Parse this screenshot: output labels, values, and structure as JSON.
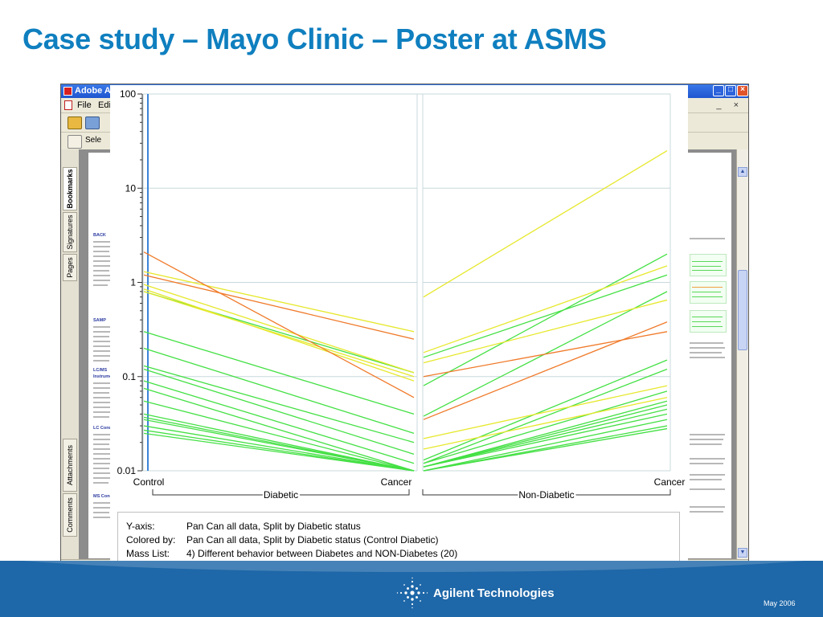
{
  "slide": {
    "title": "Case study – Mayo Clinic – Poster at ASMS",
    "footer_company": "Agilent Technologies",
    "footer_date": "May 2006",
    "logo_icon": "agilent-spark-icon"
  },
  "app_window": {
    "title": "Adobe A",
    "menu": [
      "File",
      "Edi"
    ],
    "mdi_controls": "_ ×",
    "select_tool_label": "Sele",
    "side_tabs": [
      "Bookmarks",
      "Signatures",
      "Pages",
      "Attachments",
      "Comments"
    ],
    "document_headings": [
      "BACK",
      "SAMP",
      "LC/MS",
      "Instrume",
      "LC Cond",
      "MS Cond"
    ]
  },
  "colors": {
    "title": "#0f7fbf",
    "footer": "#1e67a8",
    "orange": "#f07a2a",
    "yellow": "#e6e82c",
    "green": "#44e044",
    "selected_line": "#3a84d8",
    "grid": "#c8d8dc"
  },
  "info": {
    "rows": [
      {
        "label": "Y-axis:",
        "value": "Pan Can all data, Split by Diabetic status"
      },
      {
        "label": "Colored by:",
        "value": "Pan Can all data, Split by Diabetic status (Control Diabetic)"
      },
      {
        "label": "Mass List:",
        "value": "4) Different behavior between Diabetes and NON-Diabetes (20)"
      }
    ]
  },
  "chart_data": {
    "type": "line",
    "y_scale": "log",
    "ylim": [
      0.01,
      100
    ],
    "y_ticks": [
      "100",
      "10",
      "1",
      "0.1",
      "0.01"
    ],
    "y_tick_values": [
      100,
      10,
      1,
      0.1,
      0.01
    ],
    "panels": [
      {
        "name": "Diabetic",
        "x_ticks": [
          "Control",
          "Cancer"
        ],
        "series": [
          {
            "color": "orange",
            "values": [
              2.1,
              0.06
            ]
          },
          {
            "color": "orange",
            "values": [
              1.2,
              0.25
            ]
          },
          {
            "color": "yellow",
            "values": [
              1.3,
              0.3
            ]
          },
          {
            "color": "yellow",
            "values": [
              0.95,
              0.11
            ]
          },
          {
            "color": "yellow",
            "values": [
              0.85,
              0.09
            ]
          },
          {
            "color": "yellow",
            "values": [
              0.8,
              0.1
            ]
          },
          {
            "color": "green",
            "values": [
              0.8,
              0.11
            ]
          },
          {
            "color": "green",
            "values": [
              0.3,
              0.04
            ]
          },
          {
            "color": "green",
            "values": [
              0.2,
              0.025
            ]
          },
          {
            "color": "green",
            "values": [
              0.13,
              0.02
            ]
          },
          {
            "color": "green",
            "values": [
              0.12,
              0.015
            ]
          },
          {
            "color": "green",
            "values": [
              0.09,
              0.012
            ]
          },
          {
            "color": "green",
            "values": [
              0.075,
              0.01
            ]
          },
          {
            "color": "green",
            "values": [
              0.055,
              0.01
            ]
          },
          {
            "color": "green",
            "values": [
              0.04,
              0.01
            ]
          },
          {
            "color": "green",
            "values": [
              0.037,
              0.01
            ]
          },
          {
            "color": "green",
            "values": [
              0.035,
              0.01
            ]
          },
          {
            "color": "green",
            "values": [
              0.03,
              0.01
            ]
          },
          {
            "color": "green",
            "values": [
              0.027,
              0.01
            ]
          },
          {
            "color": "green",
            "values": [
              0.025,
              0.01
            ]
          }
        ]
      },
      {
        "name": "Non-Diabetic",
        "x_ticks": [
          "Cancer"
        ],
        "series": [
          {
            "color": "orange",
            "values": [
              0.035,
              0.38
            ]
          },
          {
            "color": "orange",
            "values": [
              0.1,
              0.3
            ]
          },
          {
            "color": "yellow",
            "values": [
              0.7,
              25
            ]
          },
          {
            "color": "yellow",
            "values": [
              0.18,
              1.5
            ]
          },
          {
            "color": "yellow",
            "values": [
              0.14,
              0.65
            ]
          },
          {
            "color": "yellow",
            "values": [
              0.022,
              0.08
            ]
          },
          {
            "color": "yellow",
            "values": [
              0.017,
              0.06
            ]
          },
          {
            "color": "green",
            "values": [
              0.08,
              2.0
            ]
          },
          {
            "color": "green",
            "values": [
              0.16,
              1.2
            ]
          },
          {
            "color": "green",
            "values": [
              0.038,
              0.8
            ]
          },
          {
            "color": "green",
            "values": [
              0.013,
              0.15
            ]
          },
          {
            "color": "green",
            "values": [
              0.012,
              0.12
            ]
          },
          {
            "color": "green",
            "values": [
              0.012,
              0.07
            ]
          },
          {
            "color": "green",
            "values": [
              0.011,
              0.055
            ]
          },
          {
            "color": "green",
            "values": [
              0.011,
              0.05
            ]
          },
          {
            "color": "green",
            "values": [
              0.011,
              0.045
            ]
          },
          {
            "color": "green",
            "values": [
              0.011,
              0.04
            ]
          },
          {
            "color": "green",
            "values": [
              0.01,
              0.035
            ]
          },
          {
            "color": "green",
            "values": [
              0.01,
              0.03
            ]
          },
          {
            "color": "green",
            "values": [
              0.01,
              0.028
            ]
          }
        ]
      }
    ],
    "group_labels": [
      "Diabetic",
      "Non-Diabetic"
    ],
    "grid": true,
    "legend": "none"
  }
}
